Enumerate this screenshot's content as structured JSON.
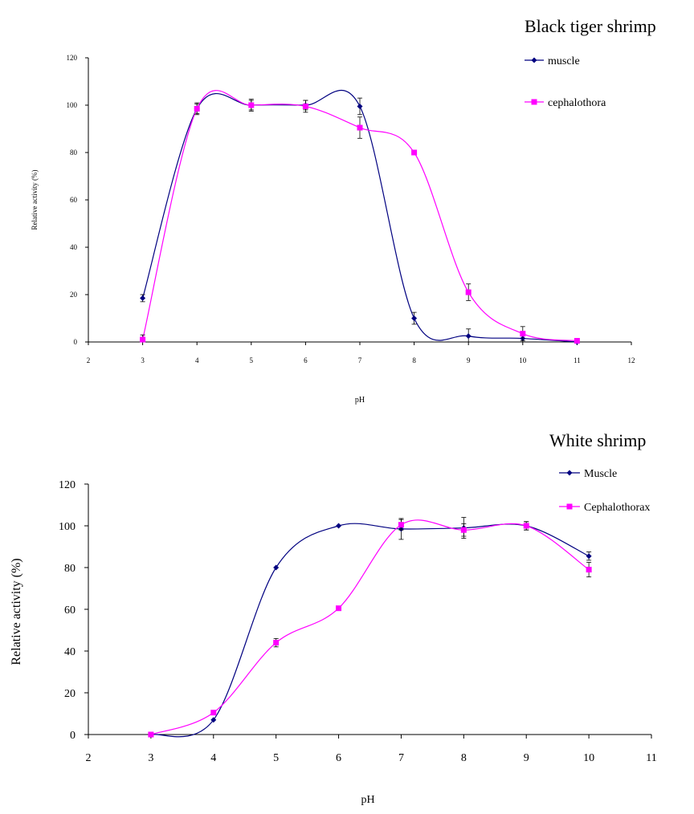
{
  "chart_data": [
    {
      "type": "line",
      "title": "Black tiger shrimp",
      "xlabel": "pH",
      "ylabel": "Relative activity (%)",
      "xlim": [
        2,
        12
      ],
      "ylim": [
        0,
        120
      ],
      "x_ticks": [
        "2",
        "3",
        "4",
        "5",
        "6",
        "7",
        "8",
        "9",
        "10",
        "11",
        "12"
      ],
      "y_ticks": [
        "0",
        "20",
        "40",
        "60",
        "80",
        "100",
        "120"
      ],
      "legend_position": "top-right",
      "grid": false,
      "series": [
        {
          "name": "muscle",
          "color": "#000080",
          "marker": "diamond",
          "x": [
            3,
            4,
            5,
            6,
            7,
            8,
            9,
            10,
            11
          ],
          "y": [
            18.5,
            98.5,
            100,
            100,
            99.5,
            10,
            2.5,
            1.5,
            0
          ],
          "error": [
            1.5,
            2,
            2,
            2,
            3.5,
            2.5,
            3,
            1.5,
            1
          ]
        },
        {
          "name": "cephalothora",
          "color": "#FF00FF",
          "marker": "square",
          "x": [
            3,
            4,
            5,
            6,
            7,
            8,
            9,
            10,
            11
          ],
          "y": [
            1,
            98.5,
            100,
            99.5,
            90.5,
            80,
            21,
            3.5,
            0.5
          ],
          "error": [
            2,
            2.5,
            2.5,
            2.5,
            4.5,
            0,
            3.5,
            3,
            1
          ]
        }
      ]
    },
    {
      "type": "line",
      "title": "White shrimp",
      "xlabel": "pH",
      "ylabel": "Relative activity (%)",
      "xlim": [
        2,
        11
      ],
      "ylim": [
        0,
        120
      ],
      "x_ticks": [
        "2",
        "3",
        "4",
        "5",
        "6",
        "7",
        "8",
        "9",
        "10",
        "11"
      ],
      "y_ticks": [
        "0",
        "20",
        "40",
        "60",
        "80",
        "100",
        "120"
      ],
      "legend_position": "top-right",
      "grid": false,
      "series": [
        {
          "name": "Muscle",
          "color": "#000080",
          "marker": "diamond",
          "x": [
            3,
            4,
            5,
            6,
            7,
            8,
            9,
            10
          ],
          "y": [
            0,
            7,
            80,
            100,
            98.5,
            99,
            100,
            85.5
          ],
          "error": [
            0,
            0,
            0,
            0,
            5,
            5,
            2,
            2
          ]
        },
        {
          "name": "Cephalothorax",
          "color": "#FF00FF",
          "marker": "square",
          "x": [
            3,
            4,
            5,
            6,
            7,
            8,
            9,
            10
          ],
          "y": [
            0,
            10.5,
            44,
            60.5,
            100.5,
            98,
            100,
            79
          ],
          "error": [
            0,
            0,
            2,
            0,
            2.5,
            3,
            2,
            3.5
          ]
        }
      ]
    }
  ]
}
